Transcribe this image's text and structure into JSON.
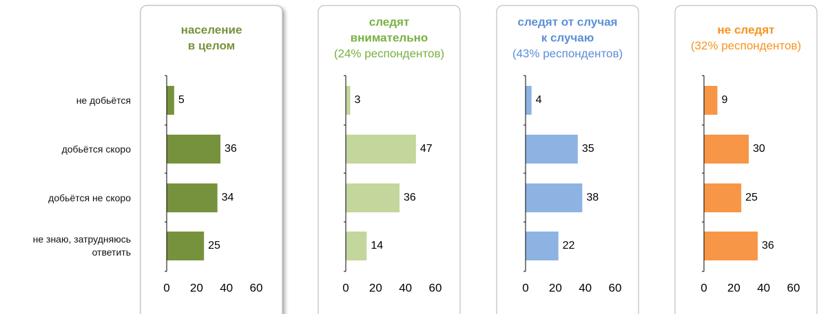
{
  "chart_data": [
    {
      "type": "barh",
      "title": [
        "население",
        "в целом"
      ],
      "title_color": "#76923c",
      "color": "#76923c",
      "shadow": true,
      "categories": [
        "не добьётся",
        "добьётся скоро",
        "добьётся не скоро",
        "не знаю, затрудняюсь ответить"
      ],
      "values": [
        5,
        36,
        34,
        25
      ],
      "xlim": [
        0,
        60
      ],
      "xticks": [
        0,
        20,
        40,
        60
      ]
    },
    {
      "type": "barh",
      "title": [
        "следят",
        "внимательно"
      ],
      "subtitle": "(24% респондентов)",
      "title_color": "#77b041",
      "color": "#c3d69b",
      "values": [
        3,
        47,
        36,
        14
      ],
      "xlim": [
        0,
        60
      ],
      "xticks": [
        0,
        20,
        40,
        60
      ]
    },
    {
      "type": "barh",
      "title": [
        "следят от случая",
        "к случаю"
      ],
      "subtitle": "(43% респондентов)",
      "title_color": "#5b8fd6",
      "color": "#8db3e2",
      "values": [
        4,
        35,
        38,
        22
      ],
      "xlim": [
        0,
        60
      ],
      "xticks": [
        0,
        20,
        40,
        60
      ]
    },
    {
      "type": "barh",
      "title": [
        "не следят"
      ],
      "subtitle": "(32% респондентов)",
      "title_color": "#f7931e",
      "color": "#f79646",
      "values": [
        9,
        30,
        25,
        36
      ],
      "xlim": [
        0,
        60
      ],
      "xticks": [
        0,
        20,
        40,
        60
      ]
    }
  ]
}
